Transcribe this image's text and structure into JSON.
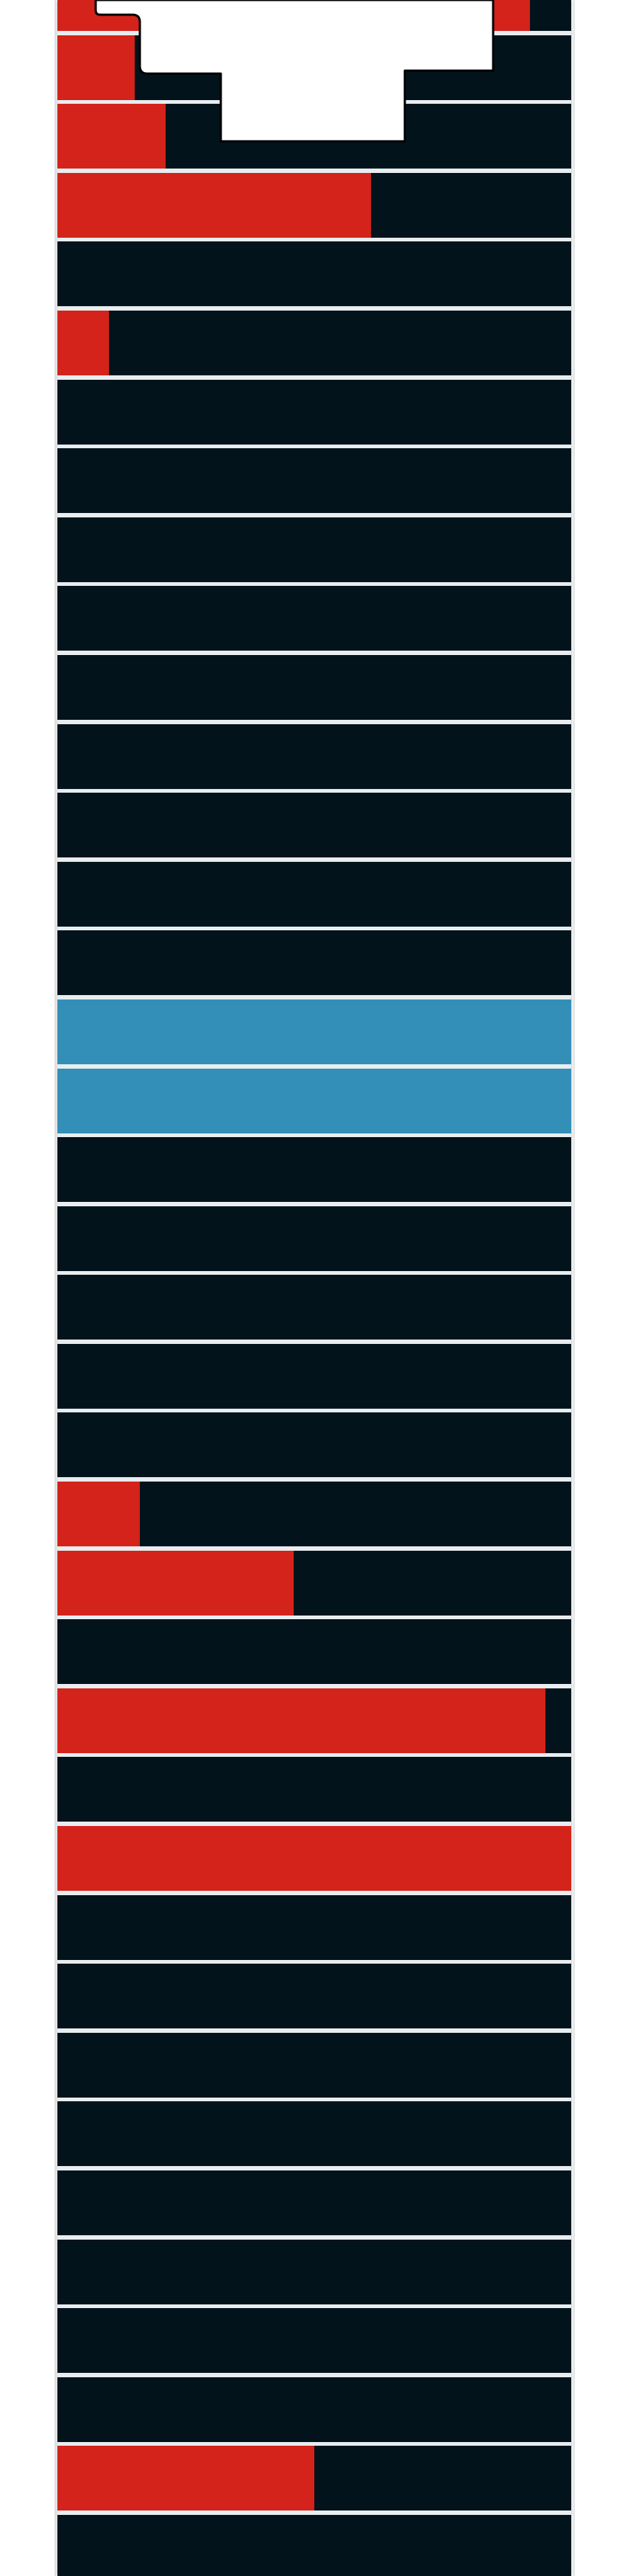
{
  "colors": {
    "row_background": "#03131b",
    "row_highlight": "#338fb7",
    "fill": "#d4231a",
    "separator": "#e8edf0",
    "page_background": "#ffffff"
  },
  "rows": [
    {
      "fill": 0.92,
      "highlighted": false
    },
    {
      "fill": 0.15,
      "highlighted": false
    },
    {
      "fill": 0.21,
      "highlighted": false
    },
    {
      "fill": 0.61,
      "highlighted": false
    },
    {
      "fill": 0.0,
      "highlighted": false
    },
    {
      "fill": 0.1,
      "highlighted": false
    },
    {
      "fill": 0.0,
      "highlighted": false
    },
    {
      "fill": 0.0,
      "highlighted": false
    },
    {
      "fill": 0.0,
      "highlighted": false
    },
    {
      "fill": 0.0,
      "highlighted": false
    },
    {
      "fill": 0.0,
      "highlighted": false
    },
    {
      "fill": 0.0,
      "highlighted": false
    },
    {
      "fill": 0.0,
      "highlighted": false
    },
    {
      "fill": 0.0,
      "highlighted": false
    },
    {
      "fill": 0.0,
      "highlighted": false
    },
    {
      "fill": 0.0,
      "highlighted": true
    },
    {
      "fill": 0.0,
      "highlighted": true
    },
    {
      "fill": 0.0,
      "highlighted": false
    },
    {
      "fill": 0.0,
      "highlighted": false
    },
    {
      "fill": 0.0,
      "highlighted": false
    },
    {
      "fill": 0.0,
      "highlighted": false
    },
    {
      "fill": 0.0,
      "highlighted": false
    },
    {
      "fill": 0.16,
      "highlighted": false
    },
    {
      "fill": 0.46,
      "highlighted": false
    },
    {
      "fill": 0.0,
      "highlighted": false
    },
    {
      "fill": 0.95,
      "highlighted": false
    },
    {
      "fill": 0.0,
      "highlighted": false
    },
    {
      "fill": 1.0,
      "highlighted": false
    },
    {
      "fill": 0.0,
      "highlighted": false
    },
    {
      "fill": 0.0,
      "highlighted": false
    },
    {
      "fill": 0.0,
      "highlighted": false
    },
    {
      "fill": 0.0,
      "highlighted": false
    },
    {
      "fill": 0.0,
      "highlighted": false
    },
    {
      "fill": 0.0,
      "highlighted": false
    },
    {
      "fill": 0.0,
      "highlighted": false
    },
    {
      "fill": 0.0,
      "highlighted": false
    },
    {
      "fill": 0.5,
      "highlighted": false
    },
    {
      "fill": 0.0,
      "highlighted": false
    }
  ]
}
